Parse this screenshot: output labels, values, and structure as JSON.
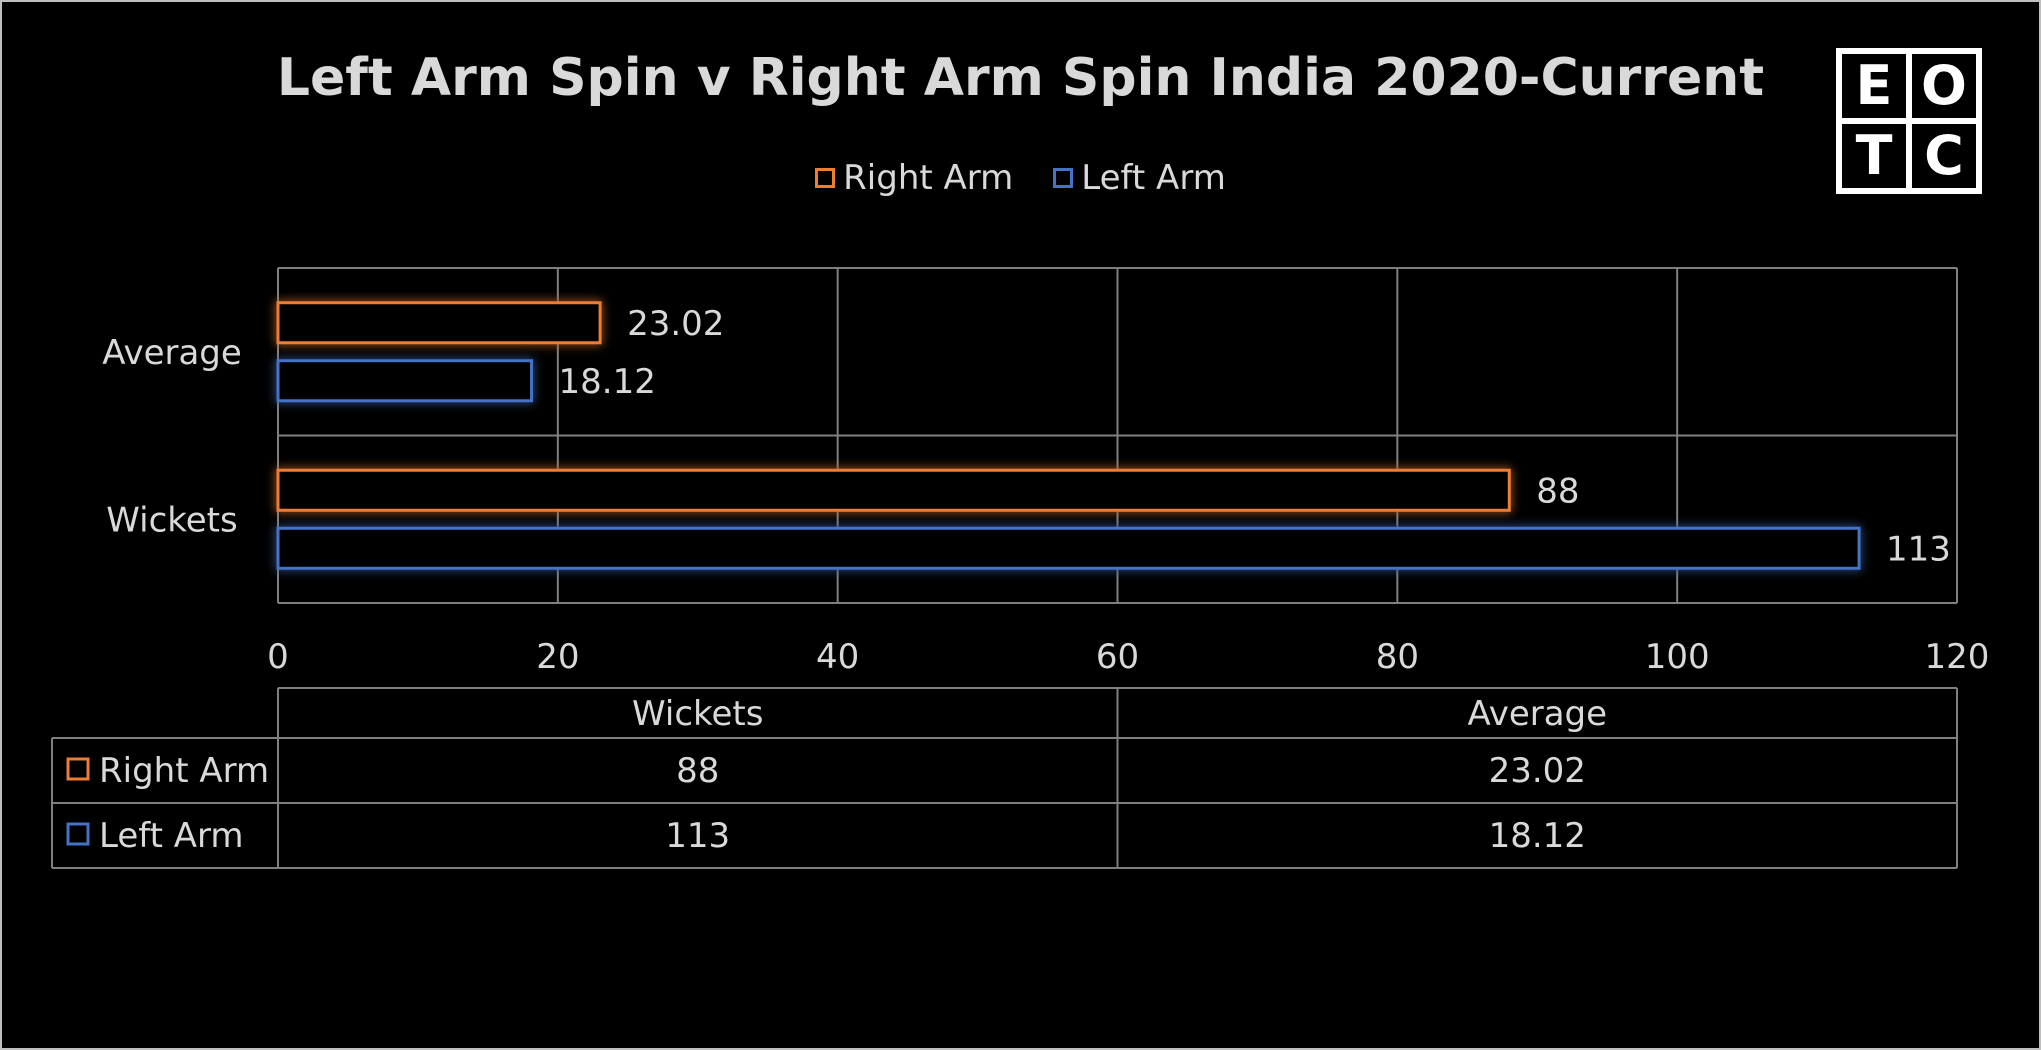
{
  "chart_data": {
    "type": "bar",
    "orientation": "horizontal",
    "title": "Left Arm Spin v Right Arm Spin India 2020-Current",
    "categories": [
      "Average",
      "Wickets"
    ],
    "series": [
      {
        "name": "Right Arm",
        "color": "#ed7d31",
        "values": [
          23.02,
          88
        ],
        "labels": [
          "23.02",
          "88"
        ]
      },
      {
        "name": "Left Arm",
        "color": "#4472c4",
        "values": [
          18.12,
          113
        ],
        "labels": [
          "18.12",
          "113"
        ]
      }
    ],
    "xlim": [
      0,
      120
    ],
    "xticks": [
      0,
      20,
      40,
      60,
      80,
      100,
      120
    ],
    "grid": true,
    "legend_position": "top",
    "data_table": {
      "columns": [
        "Wickets",
        "Average"
      ],
      "rows": [
        {
          "name": "Right Arm",
          "values": [
            "88",
            "23.02"
          ]
        },
        {
          "name": "Left Arm",
          "values": [
            "113",
            "18.12"
          ]
        }
      ]
    }
  },
  "logo": {
    "letters": [
      "E",
      "O",
      "T",
      "C"
    ]
  },
  "colors": {
    "background": "#000000",
    "text": "#d9d9d9",
    "grid": "#7f7f7f"
  }
}
